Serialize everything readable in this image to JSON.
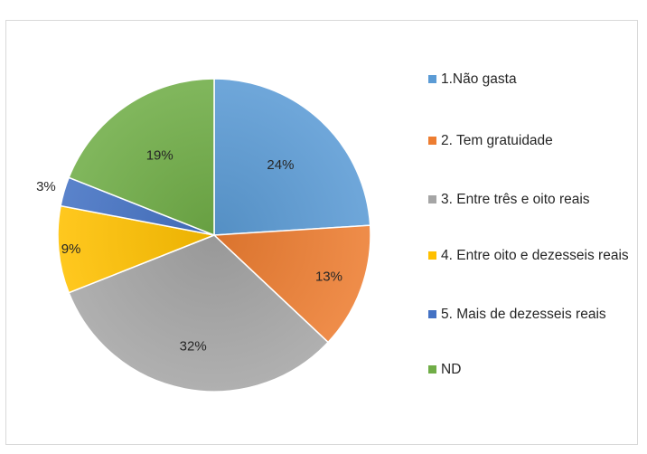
{
  "chart_data": {
    "type": "pie",
    "title": "",
    "slices": [
      {
        "label": "1.Não gasta",
        "value": 24,
        "value_label": "24%",
        "color": "#5b9bd5"
      },
      {
        "label": "2. Tem gratuidade",
        "value": 13,
        "value_label": "13%",
        "color": "#ed7d31"
      },
      {
        "label": "3. Entre três e oito reais",
        "value": 32,
        "value_label": "32%",
        "color": "#a5a5a5"
      },
      {
        "label": "4. Entre oito e dezesseis reais",
        "value": 9,
        "value_label": "9%",
        "color": "#ffc000"
      },
      {
        "label": "5. Mais de dezesseis reais",
        "value": 3,
        "value_label": "3%",
        "color": "#4472c4"
      },
      {
        "label": "ND",
        "value": 19,
        "value_label": "19%",
        "color": "#70ad47"
      }
    ],
    "legend_position": "right"
  }
}
